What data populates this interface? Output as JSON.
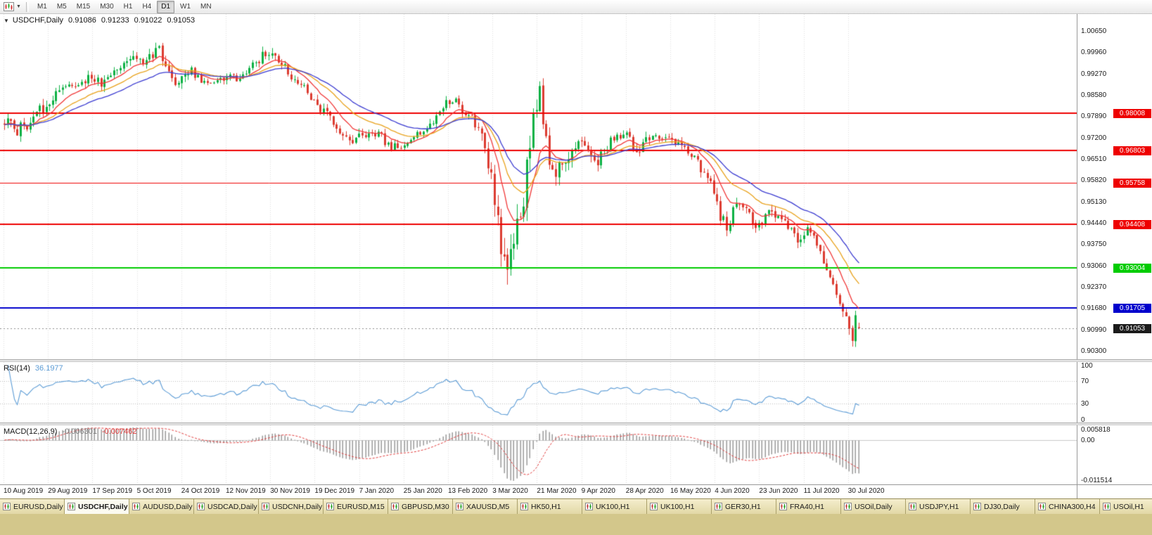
{
  "toolbar": {
    "timeframes": [
      {
        "label": "M1",
        "active": false
      },
      {
        "label": "M5",
        "active": false
      },
      {
        "label": "M15",
        "active": false
      },
      {
        "label": "M30",
        "active": false
      },
      {
        "label": "H1",
        "active": false
      },
      {
        "label": "H4",
        "active": false
      },
      {
        "label": "D1",
        "active": true
      },
      {
        "label": "W1",
        "active": false
      },
      {
        "label": "MN",
        "active": false
      }
    ]
  },
  "main_chart": {
    "one_click_arrow": "▼",
    "symbol_label": "USDCHF,Daily",
    "ohlc": {
      "o": "0.91086",
      "h": "0.91233",
      "l": "0.91022",
      "c": "0.91053"
    }
  },
  "rsi_panel": {
    "label": "RSI(14)",
    "value": "36.1977"
  },
  "macd_panel": {
    "label": "MACD(12,26,9)",
    "main_value": "-0.006301",
    "signal_value": "-0.007462"
  },
  "tabs": [
    {
      "label": "EURUSD,Daily",
      "active": false
    },
    {
      "label": "USDCHF,Daily",
      "active": true
    },
    {
      "label": "AUDUSD,Daily",
      "active": false
    },
    {
      "label": "USDCAD,Daily",
      "active": false
    },
    {
      "label": "USDCNH,Daily",
      "active": false
    },
    {
      "label": "EURUSD,M15",
      "active": false
    },
    {
      "label": "GBPUSD,M30",
      "active": false
    },
    {
      "label": "XAUUSD,M5",
      "active": false
    },
    {
      "label": "HK50,H1",
      "active": false
    },
    {
      "label": "UK100,H1",
      "active": false
    },
    {
      "label": "UK100,H1",
      "active": false
    },
    {
      "label": "GER30,H1",
      "active": false
    },
    {
      "label": "FRA40,H1",
      "active": false
    },
    {
      "label": "USOil,Daily",
      "active": false
    },
    {
      "label": "USDJPY,H1",
      "active": false
    },
    {
      "label": "DJ30,Daily",
      "active": false
    },
    {
      "label": "CHINA300,H4",
      "active": false
    },
    {
      "label": "USOil,H1",
      "active": false
    }
  ],
  "chart_data": {
    "type": "candlestick",
    "symbol": "USDCHF",
    "timeframe": "Daily",
    "price_scale": {
      "top": 1.0122,
      "bottom": 0.9005
    },
    "y_axis_labels": [
      "1.00650",
      "0.99960",
      "0.99270",
      "0.98580",
      "0.97890",
      "0.97200",
      "0.96510",
      "0.95820",
      "0.95130",
      "0.94440",
      "0.93750",
      "0.93060",
      "0.92370",
      "0.91680",
      "0.90990",
      "0.90300"
    ],
    "date_labels": [
      "10 Aug 2019",
      "29 Aug 2019",
      "17 Sep 2019",
      "5 Oct 2019",
      "24 Oct 2019",
      "12 Nov 2019",
      "30 Nov 2019",
      "19 Dec 2019",
      "7 Jan 2020",
      "25 Jan 2020",
      "13 Feb 2020",
      "3 Mar 2020",
      "21 Mar 2020",
      "9 Apr 2020",
      "28 Apr 2020",
      "16 May 2020",
      "4 Jun 2020",
      "23 Jun 2020",
      "11 Jul 2020",
      "30 Jul 2020"
    ],
    "horizontal_lines": [
      {
        "price": 0.98008,
        "label": "0.98008",
        "color": "#ee0000",
        "width": 2
      },
      {
        "price": 0.96803,
        "label": "0.96803",
        "color": "#ee0000",
        "width": 2
      },
      {
        "price": 0.95758,
        "label": "0.95758",
        "color": "#ee0000",
        "width": 1
      },
      {
        "price": 0.94408,
        "label": "0.94408",
        "color": "#ee0000",
        "width": 2
      },
      {
        "price": 0.93004,
        "label": "0.93004",
        "color": "#00cc00",
        "width": 2
      },
      {
        "price": 0.91705,
        "label": "0.91705",
        "color": "#0000cc",
        "width": 2
      }
    ],
    "current_price": {
      "price": 0.91053,
      "label": "0.91053",
      "badge_color": "#1b1b1b"
    },
    "candle_count": 266,
    "close_path_anchors": [
      [
        0,
        0.978,
        0.0048
      ],
      [
        4,
        0.9746,
        0.0045
      ],
      [
        8,
        0.9772,
        0.0045
      ],
      [
        12,
        0.9822,
        0.0048
      ],
      [
        16,
        0.9858,
        0.0045
      ],
      [
        21,
        0.989,
        0.0042
      ],
      [
        26,
        0.9918,
        0.004
      ],
      [
        30,
        0.9896,
        0.004
      ],
      [
        34,
        0.994,
        0.0042
      ],
      [
        38,
        0.9986,
        0.0044
      ],
      [
        40,
        1.0,
        0.004
      ],
      [
        43,
        0.9958,
        0.004
      ],
      [
        46,
        0.9996,
        0.004
      ],
      [
        48,
        1.0006,
        0.0038
      ],
      [
        51,
        0.9938,
        0.0044
      ],
      [
        53,
        0.9874,
        0.0046
      ],
      [
        55,
        0.9916,
        0.0042
      ],
      [
        58,
        0.9938,
        0.0035
      ],
      [
        61,
        0.9904,
        0.0035
      ],
      [
        65,
        0.989,
        0.0034
      ],
      [
        69,
        0.9928,
        0.0034
      ],
      [
        72,
        0.9906,
        0.0034
      ],
      [
        76,
        0.9942,
        0.0035
      ],
      [
        80,
        0.9988,
        0.0038
      ],
      [
        82,
        1.0006,
        0.004
      ],
      [
        85,
        0.9976,
        0.0038
      ],
      [
        88,
        0.9936,
        0.0038
      ],
      [
        92,
        0.9898,
        0.0036
      ],
      [
        96,
        0.9838,
        0.004
      ],
      [
        100,
        0.9792,
        0.0038
      ],
      [
        104,
        0.9742,
        0.004
      ],
      [
        107,
        0.9698,
        0.0042
      ],
      [
        110,
        0.9722,
        0.0038
      ],
      [
        114,
        0.9748,
        0.0035
      ],
      [
        118,
        0.9712,
        0.0035
      ],
      [
        121,
        0.969,
        0.0035
      ],
      [
        124,
        0.9684,
        0.0035
      ],
      [
        127,
        0.9718,
        0.0034
      ],
      [
        130,
        0.9746,
        0.0034
      ],
      [
        134,
        0.9788,
        0.0035
      ],
      [
        137,
        0.9828,
        0.0038
      ],
      [
        139,
        0.985,
        0.0038
      ],
      [
        142,
        0.9816,
        0.004
      ],
      [
        145,
        0.9788,
        0.0044
      ],
      [
        148,
        0.9714,
        0.006
      ],
      [
        151,
        0.9588,
        0.0085
      ],
      [
        153,
        0.9468,
        0.0105
      ],
      [
        155,
        0.9298,
        0.013
      ],
      [
        157,
        0.9392,
        0.0122
      ],
      [
        159,
        0.9464,
        0.0112
      ],
      [
        161,
        0.954,
        0.0102
      ],
      [
        163,
        0.9704,
        0.0108
      ],
      [
        165,
        0.9846,
        0.0102
      ],
      [
        166,
        0.9868,
        0.0088
      ],
      [
        168,
        0.9726,
        0.0082
      ],
      [
        170,
        0.9594,
        0.0076
      ],
      [
        172,
        0.962,
        0.0062
      ],
      [
        175,
        0.9656,
        0.0058
      ],
      [
        178,
        0.9712,
        0.0052
      ],
      [
        181,
        0.9674,
        0.0048
      ],
      [
        184,
        0.965,
        0.0046
      ],
      [
        187,
        0.9698,
        0.0044
      ],
      [
        190,
        0.9728,
        0.0042
      ],
      [
        193,
        0.9742,
        0.0042
      ],
      [
        196,
        0.9674,
        0.0044
      ],
      [
        199,
        0.9708,
        0.004
      ],
      [
        203,
        0.9732,
        0.0038
      ],
      [
        206,
        0.9716,
        0.0036
      ],
      [
        210,
        0.9702,
        0.0035
      ],
      [
        213,
        0.9668,
        0.0038
      ],
      [
        216,
        0.9622,
        0.0042
      ],
      [
        219,
        0.9596,
        0.0046
      ],
      [
        222,
        0.947,
        0.0052
      ],
      [
        224,
        0.9426,
        0.0052
      ],
      [
        227,
        0.9512,
        0.0046
      ],
      [
        230,
        0.9478,
        0.0044
      ],
      [
        234,
        0.9428,
        0.0044
      ],
      [
        237,
        0.9482,
        0.0042
      ],
      [
        240,
        0.9466,
        0.004
      ],
      [
        243,
        0.9442,
        0.004
      ],
      [
        246,
        0.9398,
        0.0042
      ],
      [
        248,
        0.9412,
        0.004
      ],
      [
        250,
        0.9428,
        0.004
      ],
      [
        252,
        0.9384,
        0.0042
      ],
      [
        254,
        0.9328,
        0.0044
      ],
      [
        256,
        0.9262,
        0.0046
      ],
      [
        258,
        0.9212,
        0.0046
      ],
      [
        260,
        0.916,
        0.005
      ],
      [
        261,
        0.913,
        0.0052
      ],
      [
        262,
        0.9086,
        0.0054
      ],
      [
        263,
        0.9064,
        0.0056
      ],
      [
        264,
        0.9136,
        0.0052
      ],
      [
        265,
        0.9105,
        0.0045
      ]
    ],
    "moving_averages": [
      {
        "period": 10,
        "color": "#f03636"
      },
      {
        "period": 21,
        "color": "#e8a21c"
      },
      {
        "period": 34,
        "color": "#3a3ad0"
      }
    ],
    "rsi": {
      "period": 14,
      "current": 36.1977,
      "levels": [
        70,
        30
      ],
      "axis_labels": [
        "100",
        "70",
        "30",
        "0"
      ],
      "color": "#5b9bd5"
    },
    "macd": {
      "fast": 12,
      "slow": 26,
      "signal": 9,
      "main_current": -0.006301,
      "signal_current": -0.007462,
      "axis_labels": {
        "top": "0.005818",
        "zero": "0.00",
        "bottom": "-0.011514"
      },
      "hist_color": "#999999",
      "signal_color": "#e03c3c"
    },
    "candle_colors": {
      "bull": "#0cb043",
      "bear": "#dc3b30"
    }
  }
}
